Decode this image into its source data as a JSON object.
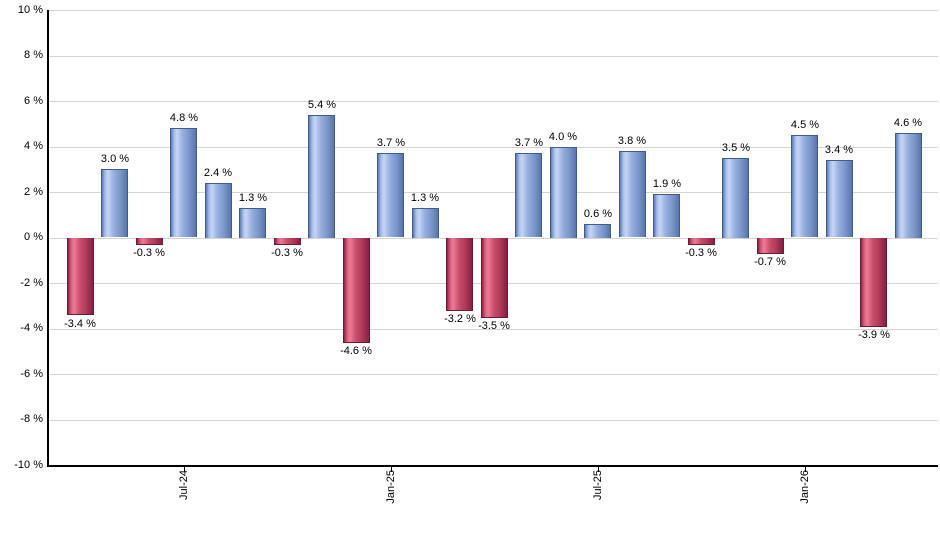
{
  "chart_data": {
    "type": "bar",
    "title": "",
    "xlabel": "",
    "ylabel": "",
    "ylim": [
      -10,
      10
    ],
    "grid": true,
    "legend": null,
    "values": [
      -3.4,
      3.0,
      -0.3,
      4.8,
      2.4,
      1.3,
      -0.3,
      5.4,
      -4.6,
      3.7,
      1.3,
      -3.2,
      -3.5,
      3.7,
      4.0,
      0.6,
      3.8,
      1.9,
      -0.3,
      3.5,
      -0.7,
      4.5,
      3.4,
      -3.9,
      4.6
    ],
    "bar_labels": [
      "-3.4 %",
      "3.0 %",
      "-0.3 %",
      "4.8 %",
      "2.4 %",
      "1.3 %",
      "-0.3 %",
      "5.4 %",
      "-4.6 %",
      "3.7 %",
      "1.3 %",
      "-3.2 %",
      "-3.5 %",
      "3.7 %",
      "4.0 %",
      "0.6 %",
      "3.8 %",
      "1.9 %",
      "-0.3 %",
      "3.5 %",
      "-0.7 %",
      "4.5 %",
      "3.4 %",
      "-3.9 %",
      "4.6 %"
    ],
    "x_ticks": [
      {
        "bar_index": 3,
        "label": "Jul-24"
      },
      {
        "bar_index": 9,
        "label": "Jan-25"
      },
      {
        "bar_index": 15,
        "label": "Jul-25"
      },
      {
        "bar_index": 21,
        "label": "Jan-26"
      }
    ],
    "y_ticks": [
      {
        "value": 10,
        "label": "10 %"
      },
      {
        "value": 8,
        "label": "8 %"
      },
      {
        "value": 6,
        "label": "6 %"
      },
      {
        "value": 4,
        "label": "4 %"
      },
      {
        "value": 2,
        "label": "2 %"
      },
      {
        "value": 0,
        "label": "0 %"
      },
      {
        "value": -2,
        "label": "-2 %"
      },
      {
        "value": -4,
        "label": "-4 %"
      },
      {
        "value": -6,
        "label": "-6 %"
      },
      {
        "value": -8,
        "label": "-8 %"
      },
      {
        "value": -10,
        "label": "-10 %"
      }
    ],
    "colors": {
      "background": "#ffffff",
      "grid": "#d4d4d4",
      "axis": "#000000",
      "text": "#000000",
      "positive_border": "#3f5c8e",
      "positive_gradient": [
        [
          "#5f7cb0",
          0
        ],
        [
          "#a9bfe8",
          13
        ],
        [
          "#c6d5f4",
          24
        ],
        [
          "#94aedd",
          48
        ],
        [
          "#7b97cc",
          72
        ],
        [
          "#5a76a8",
          100
        ]
      ],
      "negative_border": "#6d1a33",
      "negative_gradient": [
        [
          "#8e2444",
          0
        ],
        [
          "#d75f7e",
          13
        ],
        [
          "#ee7b95",
          24
        ],
        [
          "#c84e6b",
          48
        ],
        [
          "#b03b59",
          72
        ],
        [
          "#842040",
          100
        ]
      ]
    }
  }
}
